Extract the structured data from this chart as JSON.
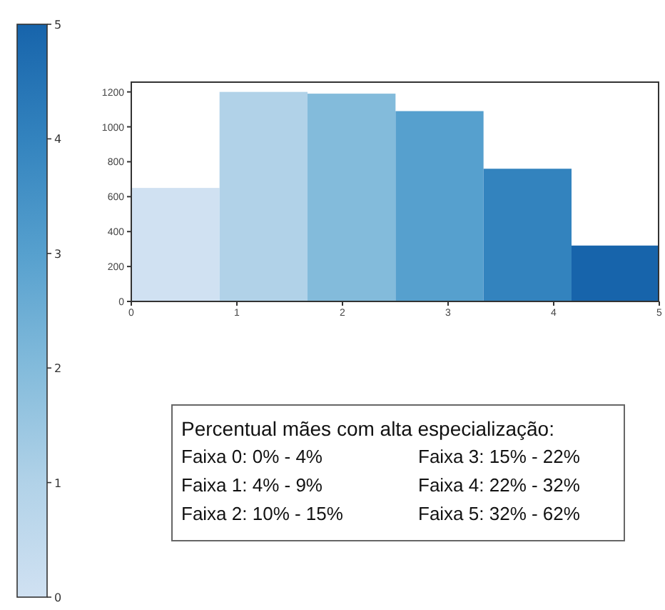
{
  "chart_data": {
    "type": "histogram",
    "bins": [
      0,
      0.8333,
      1.6667,
      2.5,
      3.3333,
      4.1667,
      5
    ],
    "values": [
      650,
      1200,
      1190,
      1090,
      760,
      320
    ],
    "colors": [
      "#d0e1f2",
      "#b1d2e8",
      "#83bbdb",
      "#56a0ce",
      "#3383be",
      "#1764ab"
    ],
    "xlim": [
      0,
      5
    ],
    "xticks": [
      0,
      1,
      2,
      3,
      4,
      5
    ],
    "ylim": [
      0,
      1260
    ],
    "yticks": [
      0,
      200,
      400,
      600,
      800,
      1000,
      1200
    ],
    "clim": [
      0,
      5
    ],
    "cticks": [
      0,
      1,
      2,
      3,
      4,
      5
    ],
    "grid": false,
    "legend": false,
    "annotations": [
      "Percentual mães com alta especialização:",
      "Faixa  0: 0% - 4%",
      "Faixa  1: 4% - 9%",
      "Faixa  2: 10% - 15%",
      "Faixa  3: 15% - 22%",
      "Faixa  4: 22% - 32%",
      "Faixa  5: 32% - 62%"
    ]
  }
}
